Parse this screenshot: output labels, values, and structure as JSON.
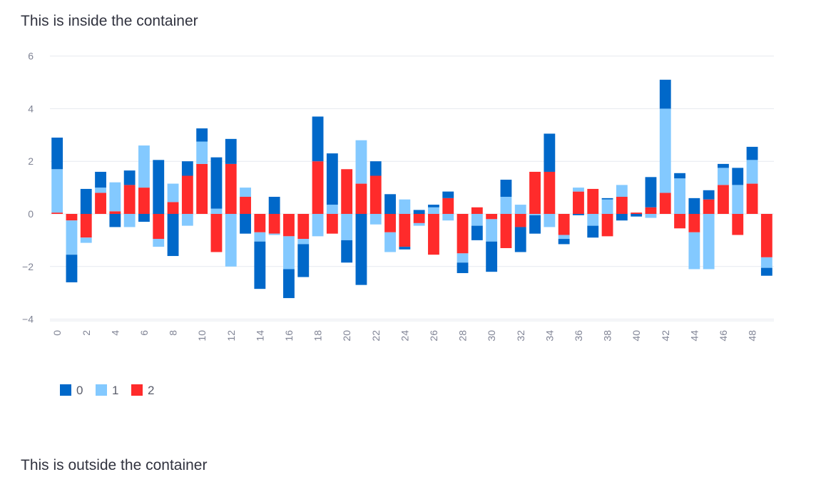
{
  "page": {
    "inside_text": "This is inside the container",
    "outside_text": "This is outside the container"
  },
  "chart_data": {
    "type": "bar",
    "stacked": true,
    "x": [
      0,
      1,
      2,
      3,
      4,
      5,
      6,
      7,
      8,
      9,
      10,
      11,
      12,
      13,
      14,
      15,
      16,
      17,
      18,
      19,
      20,
      21,
      22,
      23,
      24,
      25,
      26,
      27,
      28,
      29,
      30,
      31,
      32,
      33,
      34,
      35,
      36,
      37,
      38,
      39,
      40,
      41,
      42,
      43,
      44,
      45,
      46,
      47,
      48,
      49
    ],
    "x_ticks": [
      "0",
      "2",
      "4",
      "6",
      "8",
      "10",
      "12",
      "14",
      "16",
      "18",
      "20",
      "22",
      "24",
      "26",
      "28",
      "30",
      "32",
      "34",
      "36",
      "38",
      "40",
      "42",
      "44",
      "46",
      "48"
    ],
    "y_ticks": [
      "6",
      "4",
      "2",
      "0",
      "−2",
      "−4"
    ],
    "ylim": [
      -4.2,
      6
    ],
    "grid": true,
    "legend_position": "bottom-left",
    "colors": {
      "0": "#0068c9",
      "1": "#83c9ff",
      "2": "#ff2b2b"
    },
    "series": [
      {
        "name": "0",
        "values": [
          1.2,
          -1.05,
          0.95,
          0.6,
          -0.5,
          0.55,
          -0.3,
          2.05,
          -1.6,
          0.55,
          0.5,
          1.95,
          0.95,
          -0.75,
          -1.8,
          0.65,
          -1.1,
          -1.25,
          1.7,
          1.95,
          -0.85,
          -2.7,
          0.55,
          0.75,
          -0.1,
          0.15,
          0.1,
          0.25,
          -0.4,
          -0.55,
          -1.15,
          0.65,
          -0.95,
          -0.7,
          1.45,
          -0.2,
          -0.05,
          -0.45,
          0.05,
          -0.25,
          -0.1,
          1.15,
          1.1,
          0.2,
          0.6,
          0.35,
          0.15,
          0.65,
          0.5,
          -0.3
        ]
      },
      {
        "name": "1",
        "values": [
          1.65,
          -1.3,
          -0.2,
          0.2,
          1.1,
          -0.5,
          1.6,
          -0.3,
          0.7,
          -0.45,
          0.85,
          0.2,
          -2.0,
          0.35,
          -0.35,
          -0.05,
          -1.25,
          -0.2,
          -0.85,
          0.35,
          -1.0,
          1.65,
          -0.4,
          -0.75,
          0.55,
          -0.1,
          0.25,
          -0.25,
          -0.35,
          -0.45,
          -0.85,
          0.65,
          0.35,
          -0.05,
          -0.5,
          -0.15,
          0.15,
          -0.45,
          0.55,
          0.45,
          0.0,
          -0.15,
          3.2,
          1.35,
          -1.4,
          -2.1,
          0.65,
          1.1,
          0.9,
          -0.4
        ]
      },
      {
        "name": "2",
        "values": [
          0.05,
          -0.25,
          -0.9,
          0.8,
          0.1,
          1.1,
          1.0,
          -0.95,
          0.45,
          1.45,
          1.9,
          -1.45,
          1.9,
          0.65,
          -0.7,
          -0.75,
          -0.85,
          -0.95,
          2.0,
          -0.75,
          1.7,
          1.15,
          1.45,
          -0.7,
          -1.25,
          -0.35,
          -1.55,
          0.6,
          -1.5,
          0.25,
          -0.2,
          -1.3,
          -0.5,
          1.6,
          1.6,
          -0.8,
          0.85,
          0.95,
          -0.85,
          0.65,
          0.05,
          0.25,
          0.8,
          -0.55,
          -0.7,
          0.55,
          1.1,
          -0.8,
          1.15,
          -1.65
        ]
      }
    ]
  }
}
